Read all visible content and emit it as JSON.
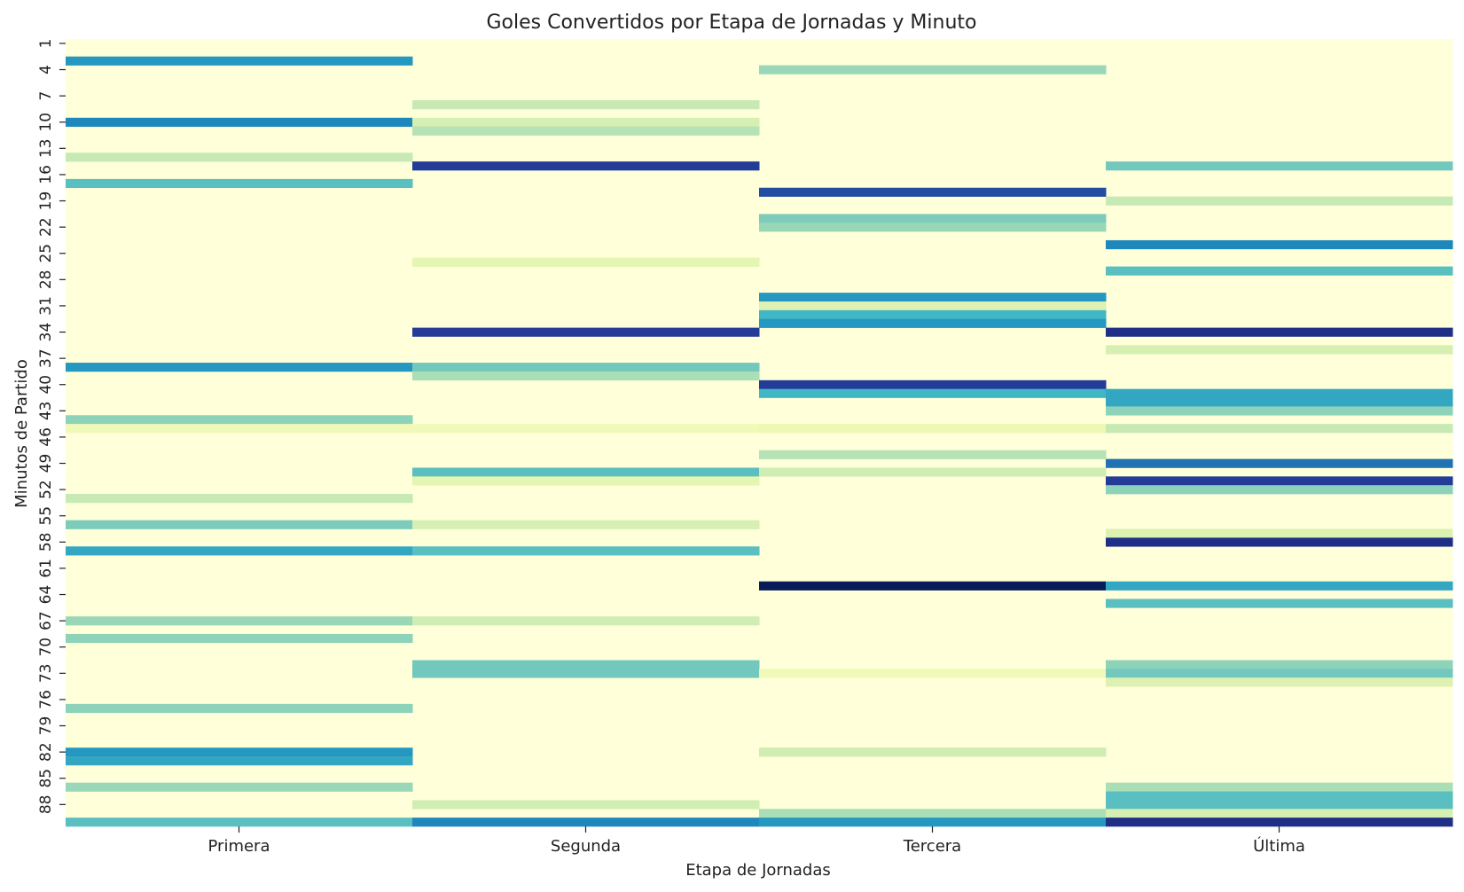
{
  "chart_data": {
    "type": "heatmap",
    "title": "Goles Convertidos por Etapa de Jornadas y Minuto",
    "xlabel": "Etapa de Jornadas",
    "ylabel": "Minutos de Partido",
    "x_categories": [
      "Primera",
      "Segunda",
      "Tercera",
      "Última"
    ],
    "y_categories": [
      1,
      2,
      3,
      4,
      5,
      6,
      7,
      8,
      9,
      10,
      11,
      12,
      13,
      14,
      15,
      16,
      17,
      18,
      19,
      20,
      21,
      22,
      23,
      24,
      25,
      26,
      27,
      28,
      29,
      30,
      31,
      32,
      33,
      34,
      35,
      36,
      37,
      38,
      39,
      40,
      41,
      42,
      43,
      44,
      45,
      46,
      47,
      48,
      49,
      50,
      51,
      52,
      53,
      54,
      55,
      56,
      57,
      58,
      59,
      60,
      61,
      62,
      63,
      64,
      65,
      66,
      67,
      68,
      69,
      70,
      71,
      72,
      73,
      74,
      75,
      76,
      77,
      78,
      79,
      80,
      81,
      82,
      83,
      84,
      85,
      86,
      87,
      88,
      89,
      90
    ],
    "y_tick_labels": [
      "1",
      "4",
      "7",
      "10",
      "13",
      "16",
      "19",
      "22",
      "25",
      "28",
      "31",
      "34",
      "37",
      "40",
      "43",
      "46",
      "49",
      "52",
      "55",
      "58",
      "61",
      "64",
      "67",
      "70",
      "73",
      "76",
      "79",
      "82",
      "85",
      "88"
    ],
    "colormap": "YlGnBu",
    "colorbar": false,
    "series": [
      {
        "name": "Primera",
        "values": {
          "3": 0.6,
          "10": 0.65,
          "14": 0.25,
          "17": 0.45,
          "38": 0.6,
          "44": 0.35,
          "45": 0.1,
          "53": 0.25,
          "56": 0.38,
          "59": 0.55,
          "67": 0.33,
          "69": 0.35,
          "77": 0.35,
          "82": 0.6,
          "83": 0.55,
          "86": 0.33,
          "90": 0.45
        }
      },
      {
        "name": "Segunda",
        "values": {
          "8": 0.25,
          "10": 0.2,
          "11": 0.28,
          "15": 0.85,
          "26": 0.15,
          "34": 0.85,
          "38": 0.4,
          "39": 0.3,
          "45": 0.1,
          "50": 0.45,
          "51": 0.15,
          "56": 0.2,
          "59": 0.45,
          "67": 0.22,
          "72": 0.4,
          "73": 0.4,
          "88": 0.22,
          "90": 0.65
        }
      },
      {
        "name": "Tercera",
        "values": {
          "4": 0.33,
          "18": 0.8,
          "21": 0.38,
          "22": 0.33,
          "30": 0.6,
          "31": 0.18,
          "32": 0.5,
          "33": 0.6,
          "40": 0.85,
          "41": 0.5,
          "45": 0.12,
          "48": 0.28,
          "50": 0.22,
          "63": 1.0,
          "73": 0.1,
          "82": 0.22,
          "89": 0.3,
          "90": 0.6
        }
      },
      {
        "name": "Última",
        "values": {
          "15": 0.4,
          "19": 0.25,
          "24": 0.65,
          "27": 0.45,
          "34": 0.9,
          "36": 0.2,
          "41": 0.55,
          "42": 0.55,
          "43": 0.35,
          "45": 0.25,
          "49": 0.7,
          "51": 0.85,
          "52": 0.35,
          "57": 0.18,
          "58": 0.9,
          "63": 0.55,
          "65": 0.45,
          "72": 0.35,
          "73": 0.4,
          "74": 0.18,
          "86": 0.3,
          "87": 0.45,
          "88": 0.45,
          "89": 0.2,
          "90": 0.9
        }
      }
    ]
  }
}
